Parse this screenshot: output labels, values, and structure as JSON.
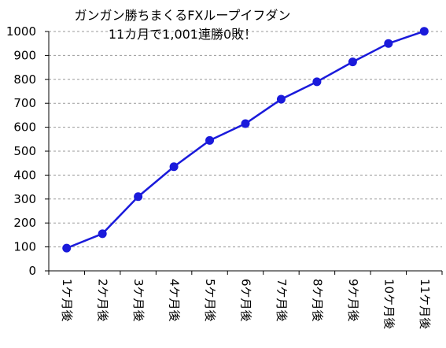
{
  "chart_data": {
    "type": "line",
    "title_lines": [
      "ガンガン勝ちまくるFXループイフダン",
      "11カ月で1,001連勝0敗！"
    ],
    "categories": [
      "1ケ月後",
      "2ケ月後",
      "3ケ月後",
      "4ケ月後",
      "5ケ月後",
      "6ケ月後",
      "7ケ月後",
      "8ケ月後",
      "9ケ月後",
      "10ケ月後",
      "11ケ月後"
    ],
    "series": [
      {
        "values": [
          95,
          155,
          310,
          435,
          545,
          615,
          717,
          790,
          873,
          950,
          1001
        ]
      }
    ],
    "ylim": [
      0,
      1000
    ],
    "yticks": [
      0,
      100,
      200,
      300,
      400,
      500,
      600,
      700,
      800,
      900,
      1000
    ],
    "grid": "horizontal dashed",
    "legend": "none",
    "colors": {
      "line": "#1a1adb",
      "marker": "#1a1adb",
      "grid": "#9a9a9a",
      "axis": "#000000"
    }
  }
}
